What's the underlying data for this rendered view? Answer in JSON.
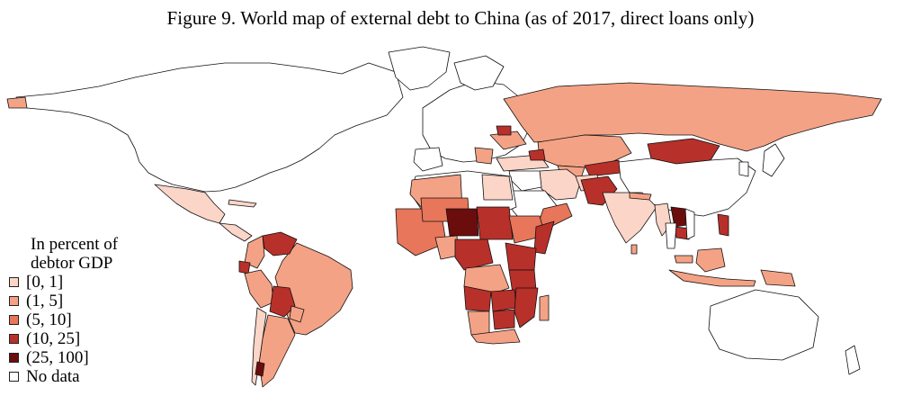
{
  "title": "Figure 9. World map of external debt to China (as of 2017, direct loans only)",
  "legend": {
    "title_line1": "In percent of",
    "title_line2": "debtor GDP",
    "items": [
      {
        "label": "[0, 1]",
        "color": "#fbd5c7"
      },
      {
        "label": "(1, 5]",
        "color": "#f4a285"
      },
      {
        "label": "(5, 10]",
        "color": "#e8765a"
      },
      {
        "label": "(10, 25]",
        "color": "#b8302a"
      },
      {
        "label": "(25, 100]",
        "color": "#6b0d0d"
      },
      {
        "label": "No data",
        "color": "#ffffff"
      }
    ]
  },
  "colors": {
    "c0": "#fbd5c7",
    "c1": "#f4a285",
    "c2": "#e8765a",
    "c3": "#b8302a",
    "c4": "#6b0d0d",
    "none": "#ffffff"
  }
}
